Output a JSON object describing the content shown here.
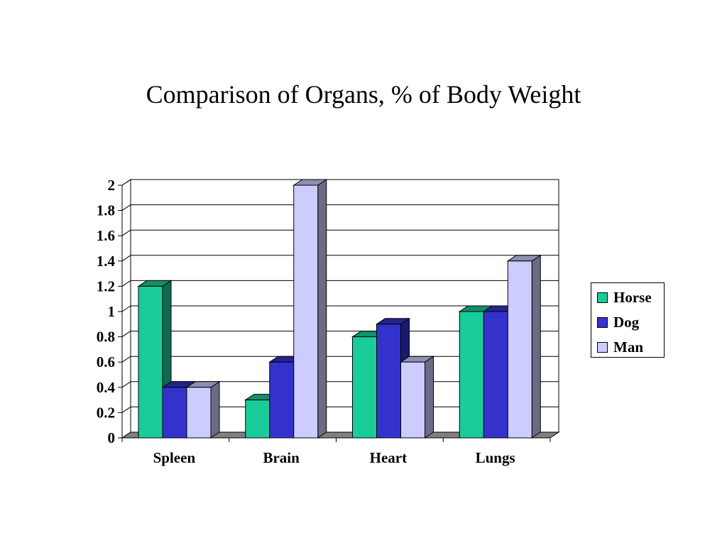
{
  "colors": {
    "Horse": {
      "front": "#1ACC99",
      "top": "#138F6B",
      "side": "#0E6B50"
    },
    "Dog": {
      "front": "#3333CC",
      "top": "#24248F",
      "side": "#1A1A6B"
    },
    "Man": {
      "front": "#CCCCFF",
      "top": "#8F8FB3",
      "side": "#6B6B86"
    }
  },
  "chart_data": {
    "type": "bar",
    "title": "Comparison of Organs, % of Body Weight",
    "categories": [
      "Spleen",
      "Brain",
      "Heart",
      "Lungs"
    ],
    "series": [
      {
        "name": "Horse",
        "values": [
          1.2,
          0.3,
          0.8,
          1.0
        ]
      },
      {
        "name": "Dog",
        "values": [
          0.4,
          0.6,
          0.9,
          1.0
        ]
      },
      {
        "name": "Man",
        "values": [
          0.4,
          2.0,
          0.6,
          1.4
        ]
      }
    ],
    "ylim": [
      0,
      2
    ],
    "yticks": [
      "0",
      "0.2",
      "0.4",
      "0.6",
      "0.8",
      "1",
      "1.2",
      "1.4",
      "1.6",
      "1.8",
      "2"
    ],
    "grid": true,
    "legend": "right",
    "style": "3d-clustered-column"
  }
}
